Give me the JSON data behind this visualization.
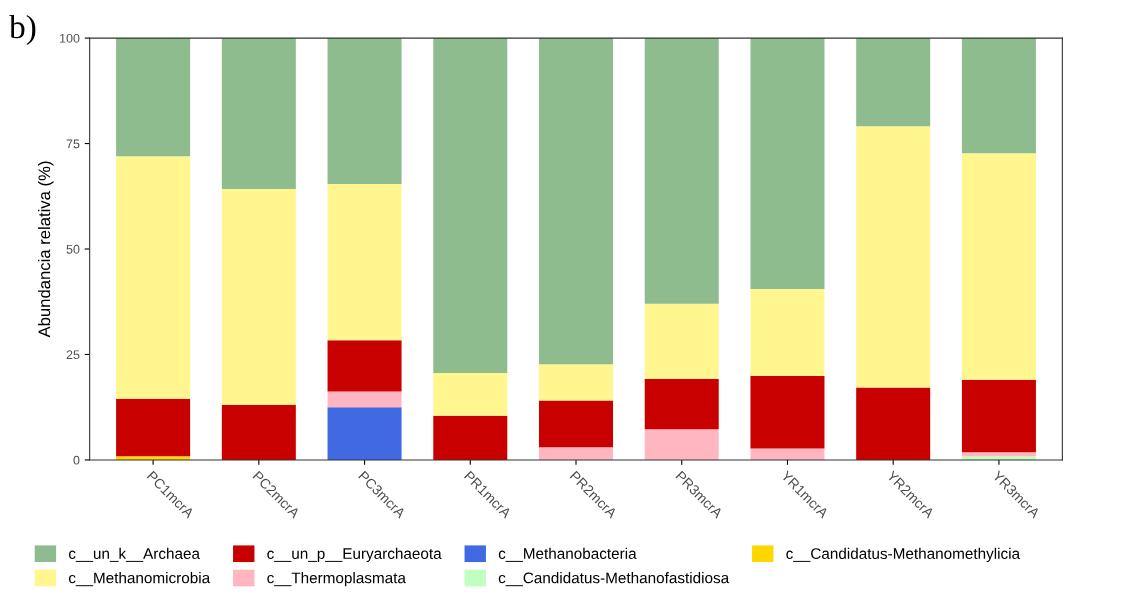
{
  "chart_data": {
    "type": "bar",
    "stacked": true,
    "ylabel": "Abundancia relativa (%)",
    "annotations": [
      "b)"
    ],
    "categories": [
      "PC1mcrA",
      "PC2mcrA",
      "PC3mcrA",
      "PR1mcrA",
      "PR2mcrA",
      "PR3mcrA",
      "YR1mcrA",
      "YR2mcrA",
      "YR3mcrA"
    ],
    "ylim": [
      0,
      100
    ],
    "yticks": [
      0,
      25,
      50,
      75,
      100
    ],
    "grid": false,
    "legend": "bottom",
    "series": [
      {
        "name": "c__Candidatus-Methanomethylicia",
        "color": "#ffd700",
        "values": [
          0.9,
          0,
          0,
          0,
          0,
          0,
          0,
          0,
          0
        ]
      },
      {
        "name": "c__Candidatus-Methanofastidiosa",
        "color": "#c1ffc1",
        "values": [
          0,
          0,
          0,
          0,
          0,
          0,
          0,
          0,
          0.9
        ]
      },
      {
        "name": "c__Methanobacteria",
        "color": "#4169e1",
        "values": [
          0,
          0,
          12.5,
          0,
          0,
          0,
          0,
          0,
          0
        ]
      },
      {
        "name": "c__Thermoplasmata",
        "color": "#ffb6c1",
        "values": [
          0,
          0,
          3.7,
          0,
          3.0,
          7.3,
          2.7,
          0,
          0.9
        ]
      },
      {
        "name": "c__un_p__Euryarchaeota",
        "color": "#c80000",
        "values": [
          13.6,
          13.1,
          12.2,
          10.5,
          11.1,
          11.9,
          17.2,
          17.2,
          17.2
        ]
      },
      {
        "name": "c__Methanomicrobia",
        "color": "#fff68f",
        "values": [
          57.5,
          51.1,
          37.0,
          10.1,
          8.6,
          17.8,
          20.6,
          61.9,
          53.7
        ]
      },
      {
        "name": "c__un_k__Archaea",
        "color": "#8fbc8f",
        "values": [
          28.0,
          35.8,
          34.6,
          79.4,
          77.3,
          63.0,
          59.5,
          20.9,
          27.3
        ]
      }
    ]
  }
}
